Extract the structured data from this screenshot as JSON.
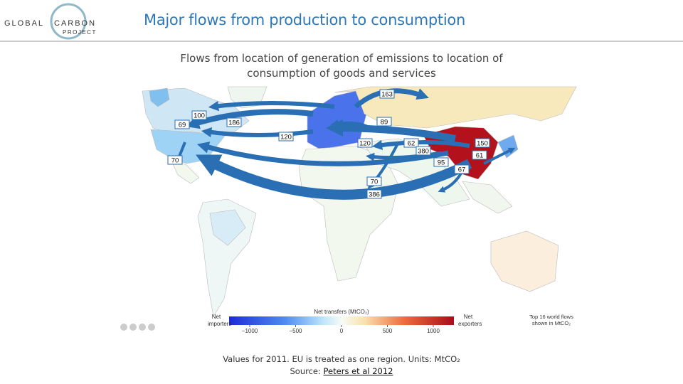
{
  "header": {
    "logo": [
      "GLOBAL",
      "CARBON",
      "PROJECT"
    ],
    "title": "Major flows from production to consumption"
  },
  "subtitle": "Flows from location of generation of emissions to location of consumption of goods and services",
  "map": {
    "flows": [
      163,
      100,
      186,
      69,
      89,
      120,
      62,
      150,
      380,
      61,
      95,
      67,
      120,
      70,
      70,
      386
    ],
    "legend": {
      "title": "Net transfers (MtCO₂)",
      "left": "Net importers",
      "right": "Net exporters",
      "ticks": [
        {
          "value": -1000,
          "label": "−1000"
        },
        {
          "value": -500,
          "label": "−500"
        },
        0,
        500,
        1000
      ],
      "note": "Top 16 world flows shown in MtCO₂"
    }
  },
  "footer": {
    "text": "Values for 2011. EU is treated as one region. Units: MtCO₂",
    "source_prefix": "Source:",
    "source_link": "Peters et al 2012"
  }
}
